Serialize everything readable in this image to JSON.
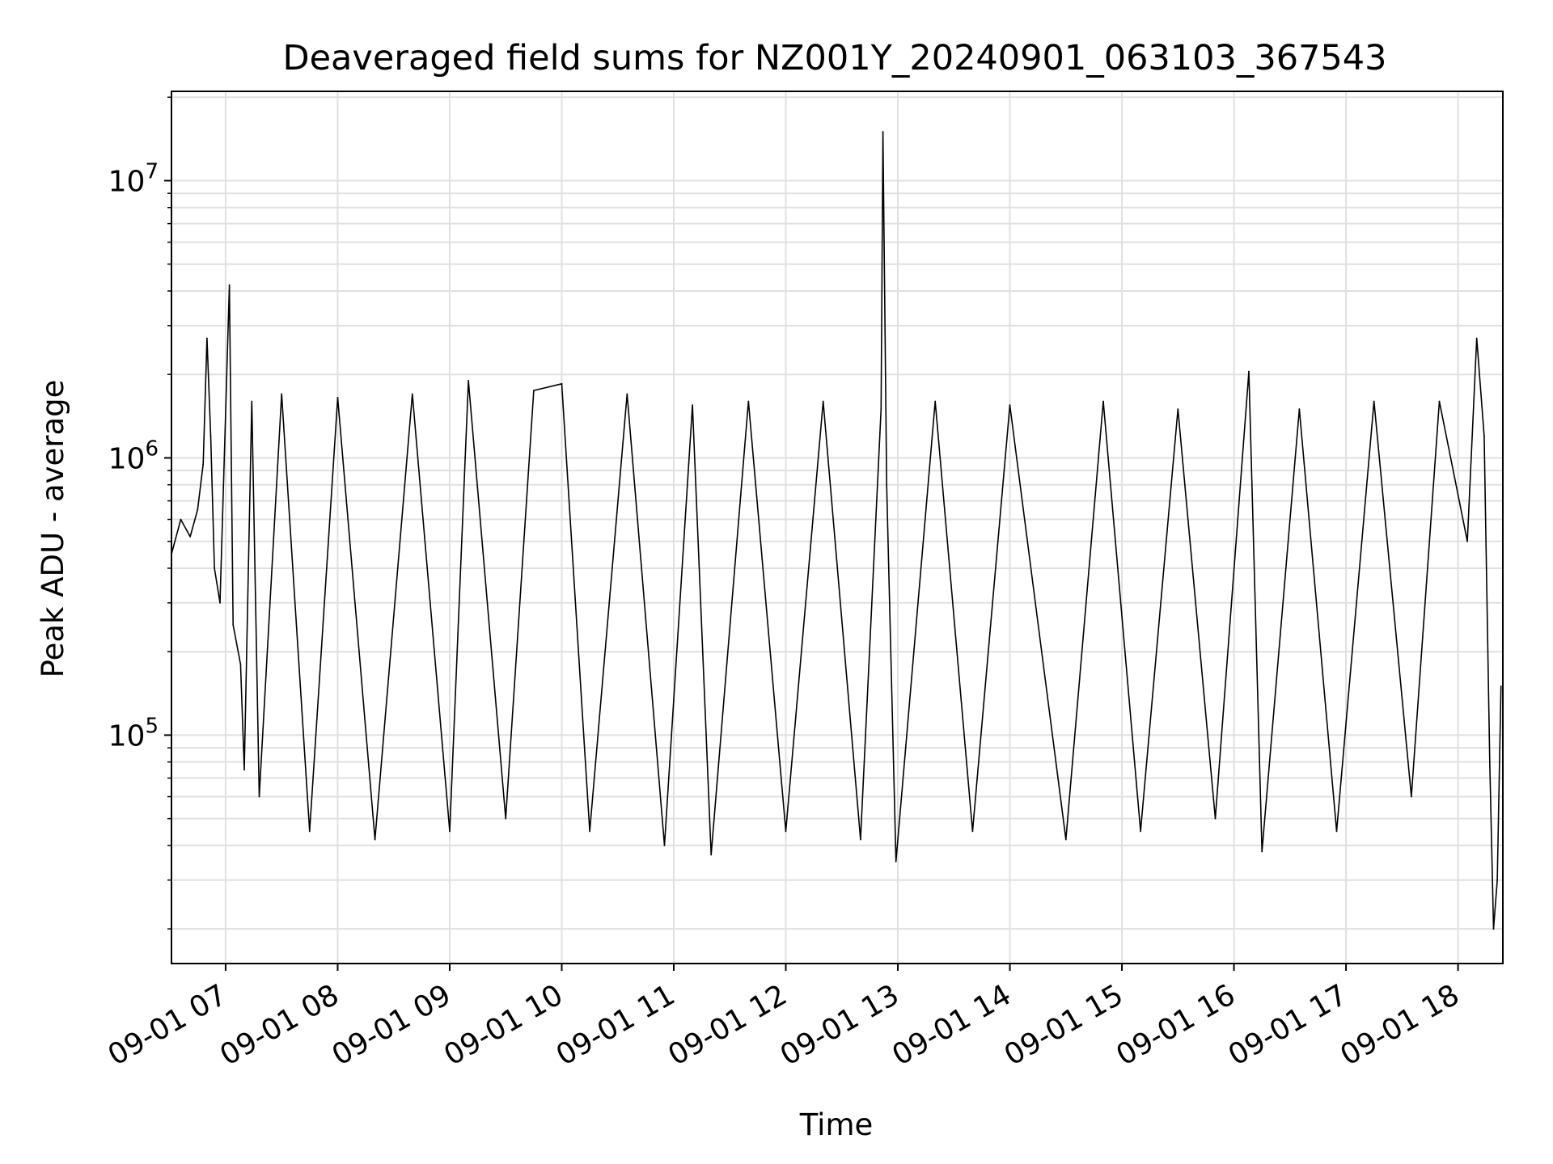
{
  "chart_data": {
    "type": "line",
    "title": "Deaveraged field sums for NZ001Y_20240901_063103_367543",
    "xlabel": "Time",
    "ylabel": "Peak ADU - average",
    "xscale": "time",
    "yscale": "log",
    "xlim": [
      "2024-09-01 06:31",
      "2024-09-01 18:24"
    ],
    "ylim": [
      15000,
      21000000
    ],
    "grid": true,
    "line_color": "#000000",
    "grid_color": "#e0e0e0",
    "x_ticks": [
      {
        "value": "2024-09-01 07:00",
        "label": "09-01 07"
      },
      {
        "value": "2024-09-01 08:00",
        "label": "09-01 08"
      },
      {
        "value": "2024-09-01 09:00",
        "label": "09-01 09"
      },
      {
        "value": "2024-09-01 10:00",
        "label": "09-01 10"
      },
      {
        "value": "2024-09-01 11:00",
        "label": "09-01 11"
      },
      {
        "value": "2024-09-01 12:00",
        "label": "09-01 12"
      },
      {
        "value": "2024-09-01 13:00",
        "label": "09-01 13"
      },
      {
        "value": "2024-09-01 14:00",
        "label": "09-01 14"
      },
      {
        "value": "2024-09-01 15:00",
        "label": "09-01 15"
      },
      {
        "value": "2024-09-01 16:00",
        "label": "09-01 16"
      },
      {
        "value": "2024-09-01 17:00",
        "label": "09-01 17"
      },
      {
        "value": "2024-09-01 18:00",
        "label": "09-01 18"
      }
    ],
    "y_ticks": [
      {
        "value": 100000,
        "base": "10",
        "exp": "5"
      },
      {
        "value": 1000000,
        "base": "10",
        "exp": "6"
      },
      {
        "value": 10000000,
        "base": "10",
        "exp": "7"
      }
    ],
    "series": [
      {
        "points": [
          [
            "2024-09-01 06:31",
            450000
          ],
          [
            "2024-09-01 06:36",
            600000
          ],
          [
            "2024-09-01 06:41",
            520000
          ],
          [
            "2024-09-01 06:45",
            650000
          ],
          [
            "2024-09-01 06:48",
            950000
          ],
          [
            "2024-09-01 06:50",
            2700000
          ],
          [
            "2024-09-01 06:52",
            1200000
          ],
          [
            "2024-09-01 06:54",
            400000
          ],
          [
            "2024-09-01 06:57",
            300000
          ],
          [
            "2024-09-01 07:02",
            4200000
          ],
          [
            "2024-09-01 07:04",
            250000
          ],
          [
            "2024-09-01 07:08",
            180000
          ],
          [
            "2024-09-01 07:10",
            75000
          ],
          [
            "2024-09-01 07:14",
            1600000
          ],
          [
            "2024-09-01 07:18",
            60000
          ],
          [
            "2024-09-01 07:30",
            1700000
          ],
          [
            "2024-09-01 07:45",
            45000
          ],
          [
            "2024-09-01 08:00",
            1650000
          ],
          [
            "2024-09-01 08:20",
            42000
          ],
          [
            "2024-09-01 08:40",
            1700000
          ],
          [
            "2024-09-01 09:00",
            45000
          ],
          [
            "2024-09-01 09:10",
            1900000
          ],
          [
            "2024-09-01 09:30",
            50000
          ],
          [
            "2024-09-01 09:45",
            1750000
          ],
          [
            "2024-09-01 10:00",
            1850000
          ],
          [
            "2024-09-01 10:15",
            45000
          ],
          [
            "2024-09-01 10:35",
            1700000
          ],
          [
            "2024-09-01 10:55",
            40000
          ],
          [
            "2024-09-01 11:10",
            1550000
          ],
          [
            "2024-09-01 11:20",
            37000
          ],
          [
            "2024-09-01 11:40",
            1600000
          ],
          [
            "2024-09-01 12:00",
            45000
          ],
          [
            "2024-09-01 12:20",
            1600000
          ],
          [
            "2024-09-01 12:40",
            42000
          ],
          [
            "2024-09-01 12:51",
            1500000
          ],
          [
            "2024-09-01 12:52",
            15000000
          ],
          [
            "2024-09-01 12:54",
            800000
          ],
          [
            "2024-09-01 12:59",
            35000
          ],
          [
            "2024-09-01 13:20",
            1600000
          ],
          [
            "2024-09-01 13:40",
            45000
          ],
          [
            "2024-09-01 14:00",
            1550000
          ],
          [
            "2024-09-01 14:30",
            42000
          ],
          [
            "2024-09-01 14:50",
            1600000
          ],
          [
            "2024-09-01 15:10",
            45000
          ],
          [
            "2024-09-01 15:30",
            1500000
          ],
          [
            "2024-09-01 15:50",
            50000
          ],
          [
            "2024-09-01 16:08",
            2050000
          ],
          [
            "2024-09-01 16:15",
            38000
          ],
          [
            "2024-09-01 16:35",
            1500000
          ],
          [
            "2024-09-01 16:55",
            45000
          ],
          [
            "2024-09-01 17:15",
            1600000
          ],
          [
            "2024-09-01 17:35",
            60000
          ],
          [
            "2024-09-01 17:50",
            1600000
          ],
          [
            "2024-09-01 18:05",
            500000
          ],
          [
            "2024-09-01 18:10",
            2700000
          ],
          [
            "2024-09-01 18:14",
            1200000
          ],
          [
            "2024-09-01 18:17",
            80000
          ],
          [
            "2024-09-01 18:19",
            20000
          ],
          [
            "2024-09-01 18:21",
            30000
          ],
          [
            "2024-09-01 18:23",
            150000
          ]
        ]
      }
    ]
  }
}
